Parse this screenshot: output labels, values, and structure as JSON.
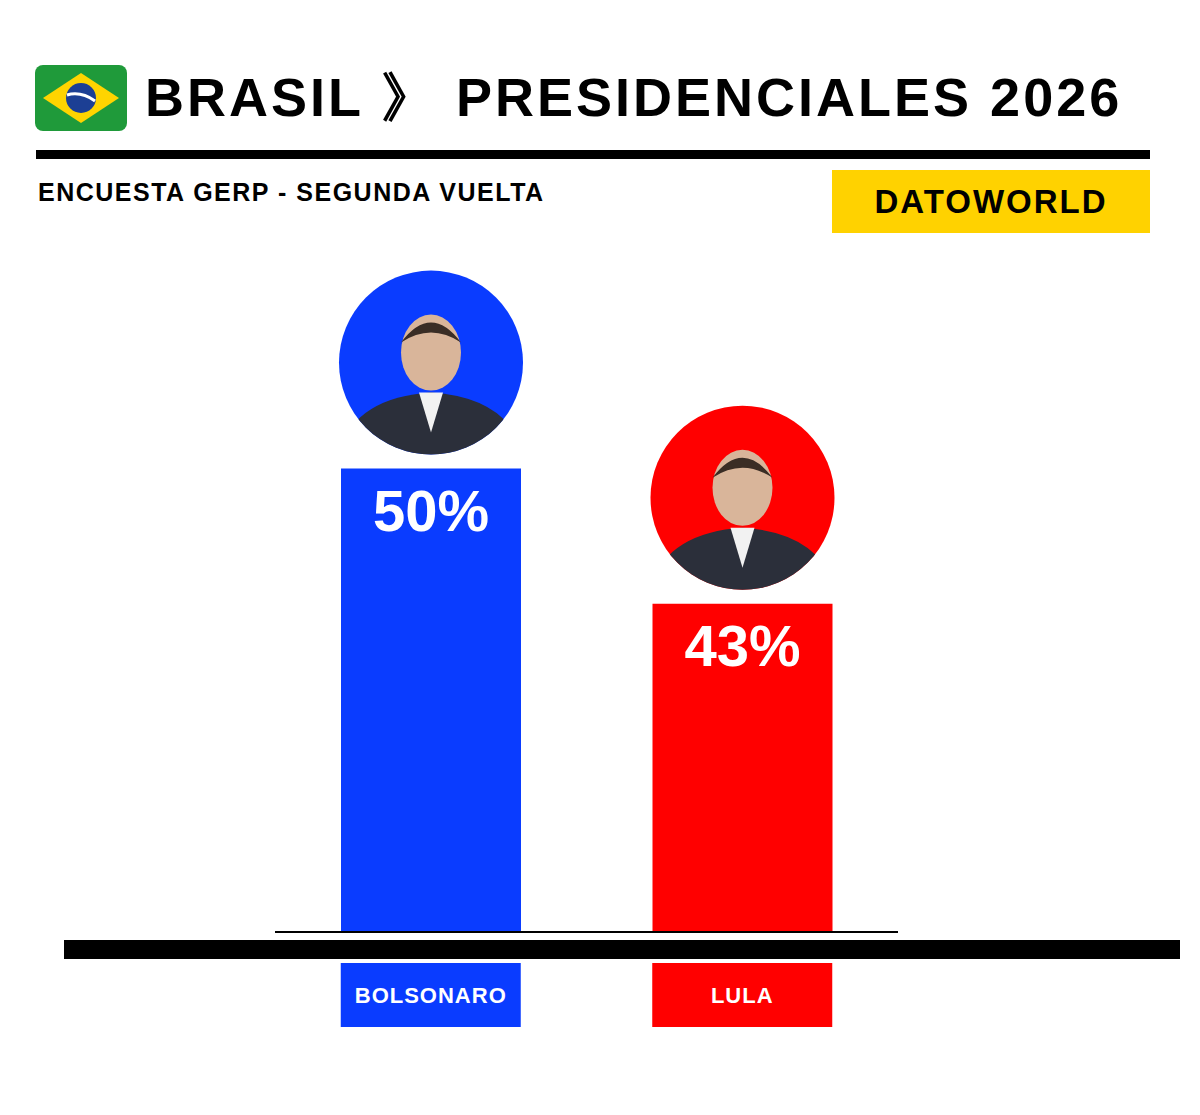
{
  "chart_data": {
    "type": "bar",
    "title": "BRASIL 》 PRESIDENCIALES 2026",
    "subtitle": "ENCUESTA GERP - SEGUNDA VUELTA",
    "annotation": "DATOWORLD",
    "categories": [
      "BOLSONARO",
      "LULA"
    ],
    "values": [
      50,
      43
    ],
    "value_labels": [
      "50%",
      "43%"
    ],
    "colors": [
      "#0a3cff",
      "#ff0000"
    ],
    "ylim": [
      26,
      52
    ],
    "yticks": [
      26,
      52
    ],
    "data_labels": true,
    "tick_labels": "x",
    "grid": false
  }
}
